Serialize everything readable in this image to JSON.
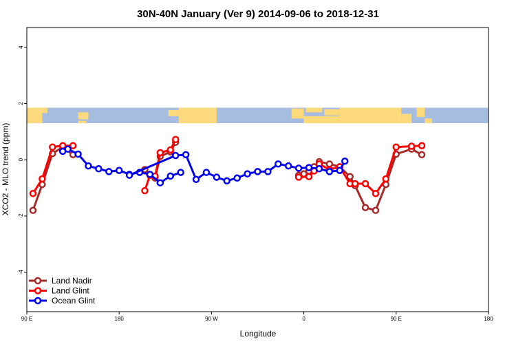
{
  "chart_data": {
    "type": "line",
    "title": "30N-40N January (Ver 9)   2014-09-06 to 2018-12-31",
    "xlabel": "Longitude",
    "ylabel": "XCO2 - MLO trend (ppm)",
    "xlim": [
      90,
      540
    ],
    "ylim": [
      -5.4,
      4.7
    ],
    "x_ticks": [
      {
        "value": 90,
        "label": "90 E"
      },
      {
        "value": 180,
        "label": "180"
      },
      {
        "value": 270,
        "label": "90 W"
      },
      {
        "value": 360,
        "label": "0"
      },
      {
        "value": 450,
        "label": "90 E"
      },
      {
        "value": 540,
        "label": "180"
      }
    ],
    "y_ticks": [
      {
        "value": -4,
        "label": "-4"
      },
      {
        "value": -2,
        "label": "-2"
      },
      {
        "value": 0,
        "label": "0"
      },
      {
        "value": 2,
        "label": "2"
      },
      {
        "value": 4,
        "label": "4"
      }
    ],
    "grid": false,
    "legend_position": "bottom-left",
    "map_strip": {
      "y_range": [
        1.3,
        1.85
      ],
      "ocean_color": "#a7bde0",
      "land_color": "#fcd97a"
    },
    "series": [
      {
        "name": "Land Nadir",
        "color": "#a52a2a",
        "segments": [
          [
            [
              96,
              -1.8
            ],
            [
              105,
              -0.88
            ],
            [
              115,
              0.22
            ],
            [
              125,
              0.45
            ],
            [
              135,
              0.18
            ]
          ],
          [
            [
              205,
              -0.35
            ],
            [
              210,
              -0.55
            ],
            [
              215,
              -0.65
            ],
            [
              220,
              0.12
            ],
            [
              230,
              0.28
            ],
            [
              235,
              0.62
            ]
          ],
          [
            [
              355,
              -0.55
            ],
            [
              360,
              -0.5
            ],
            [
              365,
              -0.4
            ],
            [
              370,
              -0.25
            ],
            [
              375,
              -0.07
            ],
            [
              385,
              -0.15
            ],
            [
              395,
              -0.25
            ],
            [
              405,
              -0.6
            ],
            [
              410,
              -0.92
            ],
            [
              420,
              -1.7
            ],
            [
              430,
              -1.8
            ],
            [
              440,
              -0.88
            ],
            [
              450,
              0.2
            ],
            [
              465,
              0.38
            ],
            [
              475,
              0.18
            ]
          ]
        ]
      },
      {
        "name": "Land Glint",
        "color": "#ff0000",
        "segments": [
          [
            [
              96,
              -1.2
            ],
            [
              105,
              -0.68
            ],
            [
              115,
              0.45
            ],
            [
              125,
              0.5
            ],
            [
              135,
              0.5
            ]
          ],
          [
            [
              205,
              -1.1
            ],
            [
              210,
              -0.55
            ],
            [
              215,
              -0.58
            ],
            [
              220,
              0.25
            ],
            [
              230,
              0.35
            ],
            [
              235,
              0.72
            ]
          ],
          [
            [
              355,
              -0.62
            ],
            [
              365,
              -0.6
            ],
            [
              370,
              -0.4
            ],
            [
              375,
              -0.15
            ],
            [
              385,
              -0.35
            ],
            [
              395,
              -0.25
            ],
            [
              405,
              -0.85
            ],
            [
              410,
              -0.85
            ],
            [
              420,
              -0.85
            ],
            [
              430,
              -1.2
            ],
            [
              440,
              -0.68
            ],
            [
              450,
              0.45
            ],
            [
              465,
              0.48
            ],
            [
              475,
              0.5
            ]
          ]
        ]
      },
      {
        "name": "Ocean Glint",
        "color": "#0000ee",
        "segments": [
          [
            [
              125,
              0.3
            ],
            [
              130,
              0.38
            ],
            [
              140,
              0.2
            ],
            [
              150,
              -0.22
            ],
            [
              160,
              -0.32
            ],
            [
              170,
              -0.42
            ],
            [
              180,
              -0.38
            ],
            [
              190,
              -0.52
            ],
            [
              200,
              -0.45
            ],
            [
              210,
              -0.52
            ],
            [
              220,
              -0.82
            ],
            [
              230,
              -0.58
            ],
            [
              240,
              -0.45
            ]
          ],
          [
            [
              190,
              -0.55
            ],
            [
              235,
              0.15
            ],
            [
              245,
              0.18
            ],
            [
              255,
              -0.7
            ],
            [
              265,
              -0.45
            ],
            [
              275,
              -0.62
            ],
            [
              285,
              -0.75
            ],
            [
              295,
              -0.65
            ],
            [
              305,
              -0.5
            ],
            [
              315,
              -0.42
            ],
            [
              325,
              -0.42
            ],
            [
              335,
              -0.15
            ],
            [
              345,
              -0.22
            ],
            [
              355,
              -0.3
            ],
            [
              365,
              -0.28
            ],
            [
              375,
              -0.32
            ],
            [
              385,
              -0.42
            ],
            [
              395,
              -0.38
            ],
            [
              400,
              -0.05
            ]
          ]
        ],
        "isolated_points": [
          [
            400,
            -0.05
          ]
        ]
      }
    ]
  }
}
